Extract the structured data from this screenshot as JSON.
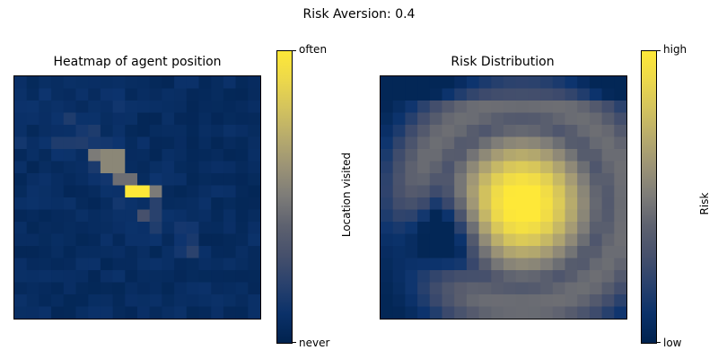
{
  "figure": {
    "suptitle": "Risk Aversion: 0.4"
  },
  "chart_data": [
    {
      "type": "heatmap",
      "title": "Heatmap of agent position",
      "grid_size": [
        20,
        20
      ],
      "colormap": "cividis",
      "colorbar": {
        "label": "Location visited",
        "ticks": [
          "never",
          "often"
        ]
      },
      "hotspots": [
        {
          "col": 9.5,
          "row": 9,
          "value": 1.0
        },
        {
          "col": 7.5,
          "row": 6.5,
          "value": 0.55
        },
        {
          "col": 6,
          "row": 6,
          "value": 0.5
        },
        {
          "col": 11,
          "row": 9,
          "value": 0.5
        },
        {
          "col": 8.5,
          "row": 8,
          "value": 0.45
        },
        {
          "col": 10,
          "row": 11,
          "value": 0.3
        },
        {
          "col": 11,
          "row": 10.5,
          "value": 0.2
        }
      ],
      "background_value": 0.08
    },
    {
      "type": "heatmap",
      "title": "Risk Distribution",
      "grid_size": [
        20,
        20
      ],
      "colormap": "cividis",
      "colorbar": {
        "label": "Risk",
        "ticks": [
          "low",
          "high"
        ]
      },
      "peak": {
        "col": 11,
        "row": 10,
        "value": 1.0
      },
      "low_region": {
        "col": 4,
        "row": 13
      }
    }
  ]
}
